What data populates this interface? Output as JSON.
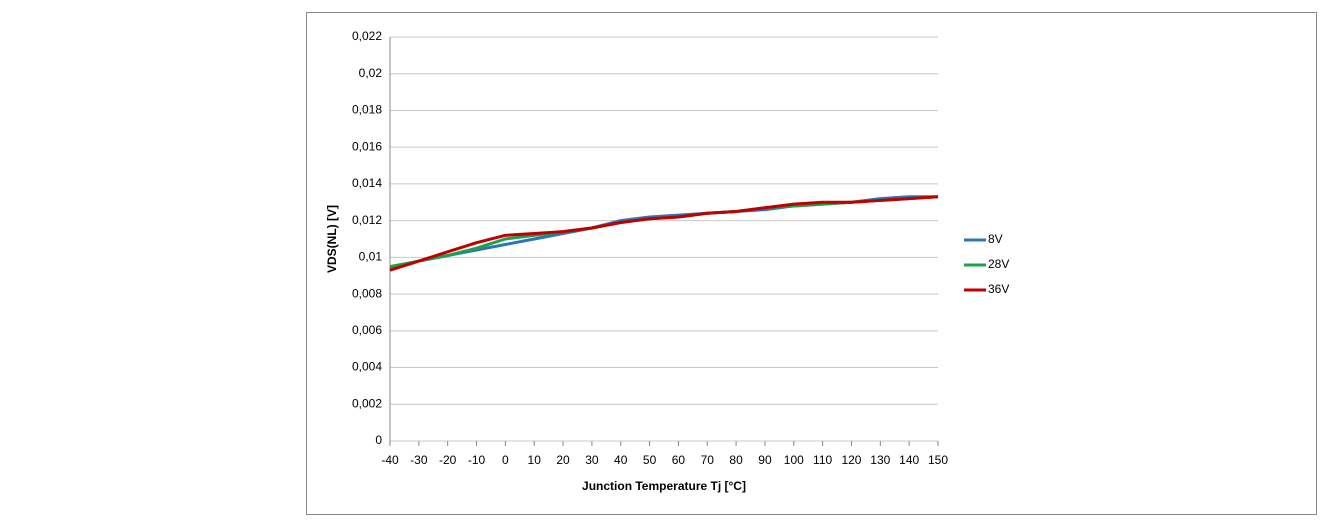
{
  "chart_data": {
    "type": "line",
    "ylabel": "VDS(NL) [V]",
    "xlabel": "Junction Temperature Tj [°C]",
    "x": [
      -40,
      -30,
      -20,
      -10,
      0,
      10,
      20,
      30,
      40,
      50,
      60,
      70,
      80,
      90,
      100,
      110,
      120,
      130,
      140,
      150
    ],
    "series": [
      {
        "name": "8V",
        "color": "#2e75b6",
        "values": [
          0.0094,
          0.0098,
          0.0101,
          0.0104,
          0.0107,
          0.011,
          0.0113,
          0.0116,
          0.012,
          0.0122,
          0.0123,
          0.0124,
          0.0125,
          0.0126,
          0.0128,
          0.0129,
          0.013,
          0.0132,
          0.0133,
          0.0133
        ]
      },
      {
        "name": "28V",
        "color": "#1ea04b",
        "values": [
          0.0095,
          0.0098,
          0.0101,
          0.0105,
          0.011,
          0.0112,
          0.0114,
          0.0116,
          0.0119,
          0.0121,
          0.0122,
          0.0124,
          0.0125,
          0.0127,
          0.0128,
          0.0129,
          0.013,
          0.0131,
          0.0132,
          0.0133
        ]
      },
      {
        "name": "36V",
        "color": "#c00000",
        "values": [
          0.0093,
          0.0098,
          0.0103,
          0.0108,
          0.0112,
          0.0113,
          0.0114,
          0.0116,
          0.0119,
          0.0121,
          0.0122,
          0.0124,
          0.0125,
          0.0127,
          0.0129,
          0.013,
          0.013,
          0.0131,
          0.0132,
          0.0133
        ]
      }
    ],
    "xlim": [
      -40,
      150
    ],
    "xticks": [
      -40,
      -30,
      -20,
      -10,
      0,
      10,
      20,
      30,
      40,
      50,
      60,
      70,
      80,
      90,
      100,
      110,
      120,
      130,
      140,
      150
    ],
    "ylim": [
      0,
      0.022
    ],
    "yticks": [
      0,
      {
        "value": 0.002,
        "label": "0,002"
      },
      {
        "value": 0.004,
        "label": "0,004"
      },
      {
        "value": 0.006,
        "label": "0,006"
      },
      {
        "value": 0.008,
        "label": "0,008"
      },
      {
        "value": 0.01,
        "label": "0,01"
      },
      {
        "value": 0.012,
        "label": "0,012"
      },
      {
        "value": 0.014,
        "label": "0,014"
      },
      {
        "value": 0.016,
        "label": "0,016"
      },
      {
        "value": 0.018,
        "label": "0,018"
      },
      {
        "value": 0.02,
        "label": "0,02"
      },
      {
        "value": 0.022,
        "label": "0,022"
      }
    ],
    "grid": true,
    "legend": "right"
  }
}
